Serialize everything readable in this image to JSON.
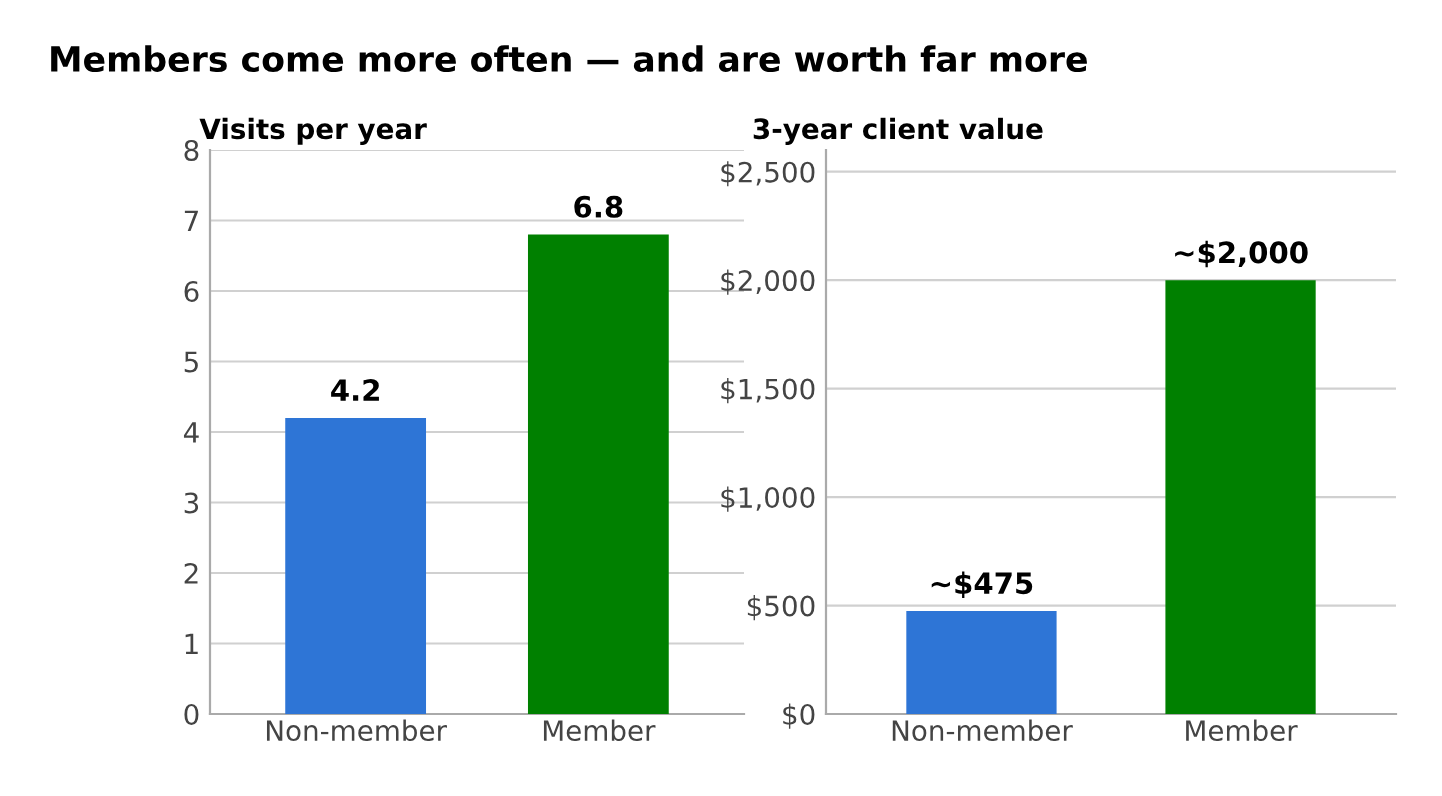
{
  "chart_data": [
    {
      "type": "bar",
      "title": "Visits per year",
      "categories": [
        "Non-member",
        "Member"
      ],
      "values": [
        4.2,
        6.8
      ],
      "colors": [
        "#2e75d6",
        "#008000"
      ],
      "ylim": [
        0,
        8
      ],
      "yticks": [
        0,
        1,
        2,
        3,
        4,
        5,
        6,
        7,
        8
      ],
      "grid": "y",
      "data_labels": true,
      "annotations": [
        "Members come more often — and are worth far more"
      ]
    },
    {
      "type": "bar",
      "title": "3-year client value",
      "categories": [
        "Non-member",
        "Member"
      ],
      "values": [
        475,
        2000
      ],
      "colors": [
        "#2e75d6",
        "#008000"
      ],
      "value_labels": [
        "~$475",
        "~$2,000"
      ],
      "ylim": [
        0,
        2600
      ],
      "yticks": [
        {
          "value": 0,
          "label": "$0"
        },
        {
          "value": 500,
          "label": "$500"
        },
        {
          "value": 1000,
          "label": "$1,000"
        },
        {
          "value": 1500,
          "label": "$1,500"
        },
        {
          "value": 2000,
          "label": "$2,000"
        },
        {
          "value": 2500,
          "label": "$2,500"
        }
      ],
      "grid": "y"
    }
  ]
}
